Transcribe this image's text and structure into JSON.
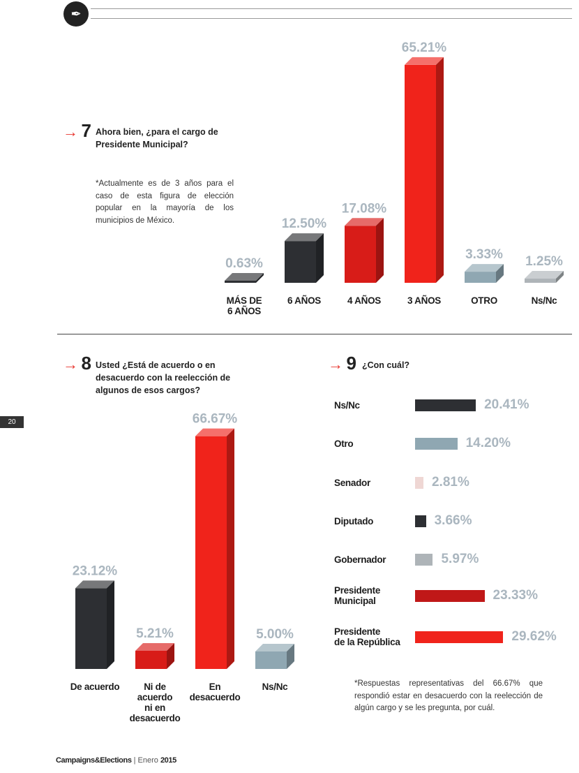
{
  "page": {
    "number": "20"
  },
  "footer": {
    "brand": "Campaigns&Elections",
    "separator": "|",
    "month": "Enero",
    "year": "2015"
  },
  "colors": {
    "dark": "#2d2f33",
    "red": "#e31b15",
    "darkred": "#c01818",
    "grey": "#8fa7b2",
    "lightgrey": "#aeb4b8",
    "pink": "#efd7d4"
  },
  "q7": {
    "arrow": "→",
    "number": "7",
    "question": "Ahora bien, ¿para el cargo de Presidente Municipal?",
    "note": "*Actualmente es de 3 años para el caso de esta figura de elección popular en la mayoría de los municipios de México."
  },
  "q8": {
    "arrow": "→",
    "number": "8",
    "question": "Usted ¿Está de acuerdo o en desacuerdo con la reelección de algunos de esos cargos?"
  },
  "q9": {
    "arrow": "→",
    "number": "9",
    "question": "¿Con cuál?",
    "note": "*Respuestas representativas del 66.67% que respondió estar en desacuerdo con la reelección de algún cargo y se les pregunta, por cuál."
  },
  "chart_data": [
    {
      "id": "q7",
      "type": "bar",
      "title": "Ahora bien, ¿para el cargo de Presidente Municipal?",
      "categories": [
        "MÁS DE 6 AÑOS",
        "6 AÑOS",
        "4 AÑOS",
        "3 AÑOS",
        "OTRO",
        "Ns/Nc"
      ],
      "values": [
        0.63,
        12.5,
        17.08,
        65.21,
        3.33,
        1.25
      ],
      "labels": [
        "0.63%",
        "12.50%",
        "17.08%",
        "65.21%",
        "3.33%",
        "1.25%"
      ],
      "colors": [
        "#2d2f33",
        "#2d2f33",
        "#d81c18",
        "#f0231b",
        "#8fa7b2",
        "#aeb4b8"
      ],
      "xlabel": "",
      "ylabel": "",
      "ylim": [
        0,
        70
      ]
    },
    {
      "id": "q8",
      "type": "bar",
      "title": "Usted ¿Está de acuerdo o en desacuerdo con la reelección de algunos de esos cargos?",
      "categories": [
        "De acuerdo",
        "Ni de acuerdo ni en desacuerdo",
        "En desacuerdo",
        "Ns/Nc"
      ],
      "values": [
        23.12,
        5.21,
        66.67,
        5.0
      ],
      "labels": [
        "23.12%",
        "5.21%",
        "66.67%",
        "5.00%"
      ],
      "colors": [
        "#2d2f33",
        "#d81c18",
        "#f0231b",
        "#8fa7b2"
      ],
      "xlabel": "",
      "ylabel": "",
      "ylim": [
        0,
        70
      ]
    },
    {
      "id": "q9",
      "type": "bar",
      "orientation": "horizontal",
      "title": "¿Con cuál?",
      "categories": [
        "Ns/Nc",
        "Otro",
        "Senador",
        "Diputado",
        "Gobernador",
        "Presidente Municipal",
        "Presidente de la República"
      ],
      "values": [
        20.41,
        14.2,
        2.81,
        3.66,
        5.97,
        23.33,
        29.62
      ],
      "labels": [
        "20.41%",
        "14.20%",
        "2.81%",
        "3.66%",
        "5.97%",
        "23.33%",
        "29.62%"
      ],
      "colors": [
        "#2d2f33",
        "#8fa7b2",
        "#efd7d4",
        "#2d2f33",
        "#aeb4b8",
        "#c01818",
        "#f0231b"
      ],
      "xlabel": "",
      "ylabel": "",
      "xlim": [
        0,
        30
      ]
    }
  ]
}
